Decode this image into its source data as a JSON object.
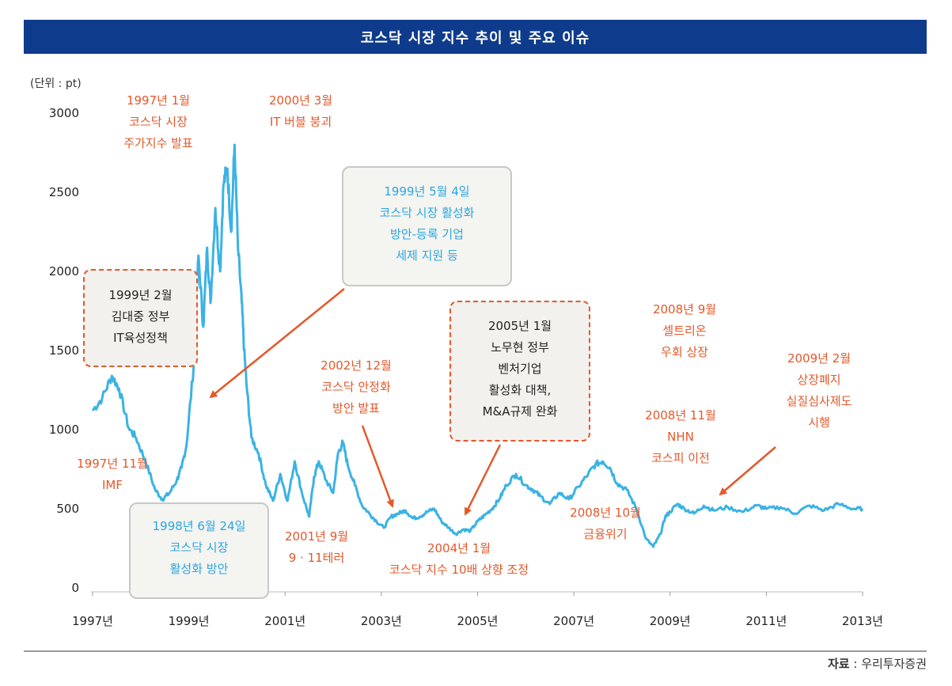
{
  "header": {
    "title": "코스닥 시장 지수 추이 및 주요 이슈"
  },
  "source": {
    "label": "자료",
    "sep": " : ",
    "text": "우리투자증권"
  },
  "colors": {
    "line": "#3bb2e4",
    "orange": "#e4582a",
    "blue": "#2ca6e0",
    "title_bg": "#0f3b8c"
  },
  "chart_data": {
    "type": "line",
    "unit_label": "(단위 : pt)",
    "ylim": [
      0,
      3000
    ],
    "y_ticks": [
      "0",
      "500",
      "1000",
      "1500",
      "2000",
      "2500",
      "3000"
    ],
    "x_ticks": [
      "1997년",
      "1999년",
      "2001년",
      "2003년",
      "2005년",
      "2007년",
      "2009년",
      "2011년",
      "2013년"
    ],
    "xlim": [
      1997.0,
      2013.0
    ],
    "grid": false,
    "series": [
      {
        "x": [
          1997.0,
          1997.2,
          1997.4,
          1997.55,
          1997.75,
          1997.9,
          1998.1,
          1998.3,
          1998.45,
          1998.6,
          1998.75,
          1998.85,
          1998.95,
          1999.1,
          1999.2,
          1999.3,
          1999.38,
          1999.45,
          1999.55,
          1999.65,
          1999.72,
          1999.8,
          1999.88,
          1999.95,
          2000.02,
          2000.1,
          2000.15,
          2000.2,
          2000.3,
          2000.45,
          2000.6,
          2000.75,
          2000.9,
          2001.05,
          2001.2,
          2001.35,
          2001.5,
          2001.6,
          2001.7,
          2001.85,
          2002.0,
          2002.1,
          2002.2,
          2002.3,
          2002.45,
          2002.6,
          2002.75,
          2002.9,
          2003.05,
          2003.2,
          2003.35,
          2003.5,
          2003.65,
          2003.8,
          2003.95,
          2004.1,
          2004.25,
          2004.4,
          2004.55,
          2004.7,
          2004.85,
          2005.0,
          2005.15,
          2005.3,
          2005.45,
          2005.6,
          2005.8,
          2006.0,
          2006.15,
          2006.3,
          2006.5,
          2006.7,
          2006.9,
          2007.1,
          2007.3,
          2007.45,
          2007.6,
          2007.75,
          2007.9,
          2008.1,
          2008.3,
          2008.5,
          2008.65,
          2008.8,
          2008.9,
          2009.0,
          2009.15,
          2009.3,
          2009.5,
          2009.7,
          2009.9,
          2010.2,
          2010.5,
          2010.8,
          2011.0,
          2011.3,
          2011.6,
          2011.9,
          2012.2,
          2012.5,
          2012.8,
          2013.0
        ],
        "y": [
          1120,
          1200,
          1340,
          1260,
          1010,
          950,
          800,
          620,
          560,
          600,
          680,
          760,
          900,
          1400,
          2100,
          1650,
          2150,
          1800,
          2400,
          2000,
          2550,
          2650,
          2250,
          2800,
          2150,
          1800,
          1500,
          1280,
          950,
          850,
          650,
          550,
          720,
          550,
          800,
          600,
          450,
          700,
          800,
          680,
          600,
          850,
          920,
          780,
          650,
          520,
          470,
          420,
          380,
          450,
          470,
          490,
          440,
          450,
          480,
          500,
          420,
          380,
          340,
          370,
          360,
          420,
          460,
          500,
          560,
          650,
          720,
          650,
          620,
          580,
          530,
          600,
          560,
          640,
          720,
          780,
          800,
          760,
          660,
          620,
          500,
          310,
          260,
          340,
          450,
          480,
          530,
          500,
          470,
          520,
          490,
          510,
          480,
          520,
          500,
          510,
          470,
          520,
          490,
          530,
          500,
          500
        ]
      }
    ],
    "annotations": [
      {
        "id": "a1997-1",
        "lines": [
          "1997년 1월",
          "코스닥 시장",
          "주가지수 발표"
        ]
      },
      {
        "id": "a2000-3",
        "lines": [
          "2000년 3월",
          "IT 버블 붕괴"
        ]
      },
      {
        "id": "a1999-5",
        "lines": [
          "1999년 5월 4일",
          "코스닥 시장 활성화",
          "방안-등록 기업",
          "세제 지원 등"
        ]
      },
      {
        "id": "a1999-2",
        "lines": [
          "1999년 2월",
          "김대중 정부",
          "IT육성정책"
        ]
      },
      {
        "id": "a2002-12",
        "lines": [
          "2002년 12월",
          "코스닥 안정화",
          "방안 발표"
        ]
      },
      {
        "id": "a2005-1",
        "lines": [
          "2005년 1월",
          "노무현 정부",
          "벤처기업",
          "활성화 대책,",
          "M&A규제 완화"
        ]
      },
      {
        "id": "a2008-9",
        "lines": [
          "2008년 9월",
          "셀트리온",
          "우회 상장"
        ]
      },
      {
        "id": "a2009-2",
        "lines": [
          "2009년 2월",
          "상장폐지",
          "실질심사제도",
          "시행"
        ]
      },
      {
        "id": "a2008-11",
        "lines": [
          "2008년 11월",
          "NHN",
          "코스피 이전"
        ]
      },
      {
        "id": "a1997-11",
        "lines": [
          "1997년 11월",
          "IMF"
        ]
      },
      {
        "id": "a1998-6",
        "lines": [
          "1998년 6월 24일",
          "코스닥 시장",
          "활성화 방안"
        ]
      },
      {
        "id": "a2001-9",
        "lines": [
          "2001년 9월",
          "9 · 11테러"
        ]
      },
      {
        "id": "a2008-10",
        "lines": [
          "2008년 10월",
          "금융위기"
        ]
      },
      {
        "id": "a2004-1",
        "lines": [
          "2004년 1월",
          "코스닥 지수 10배 상향 조정"
        ]
      }
    ]
  }
}
